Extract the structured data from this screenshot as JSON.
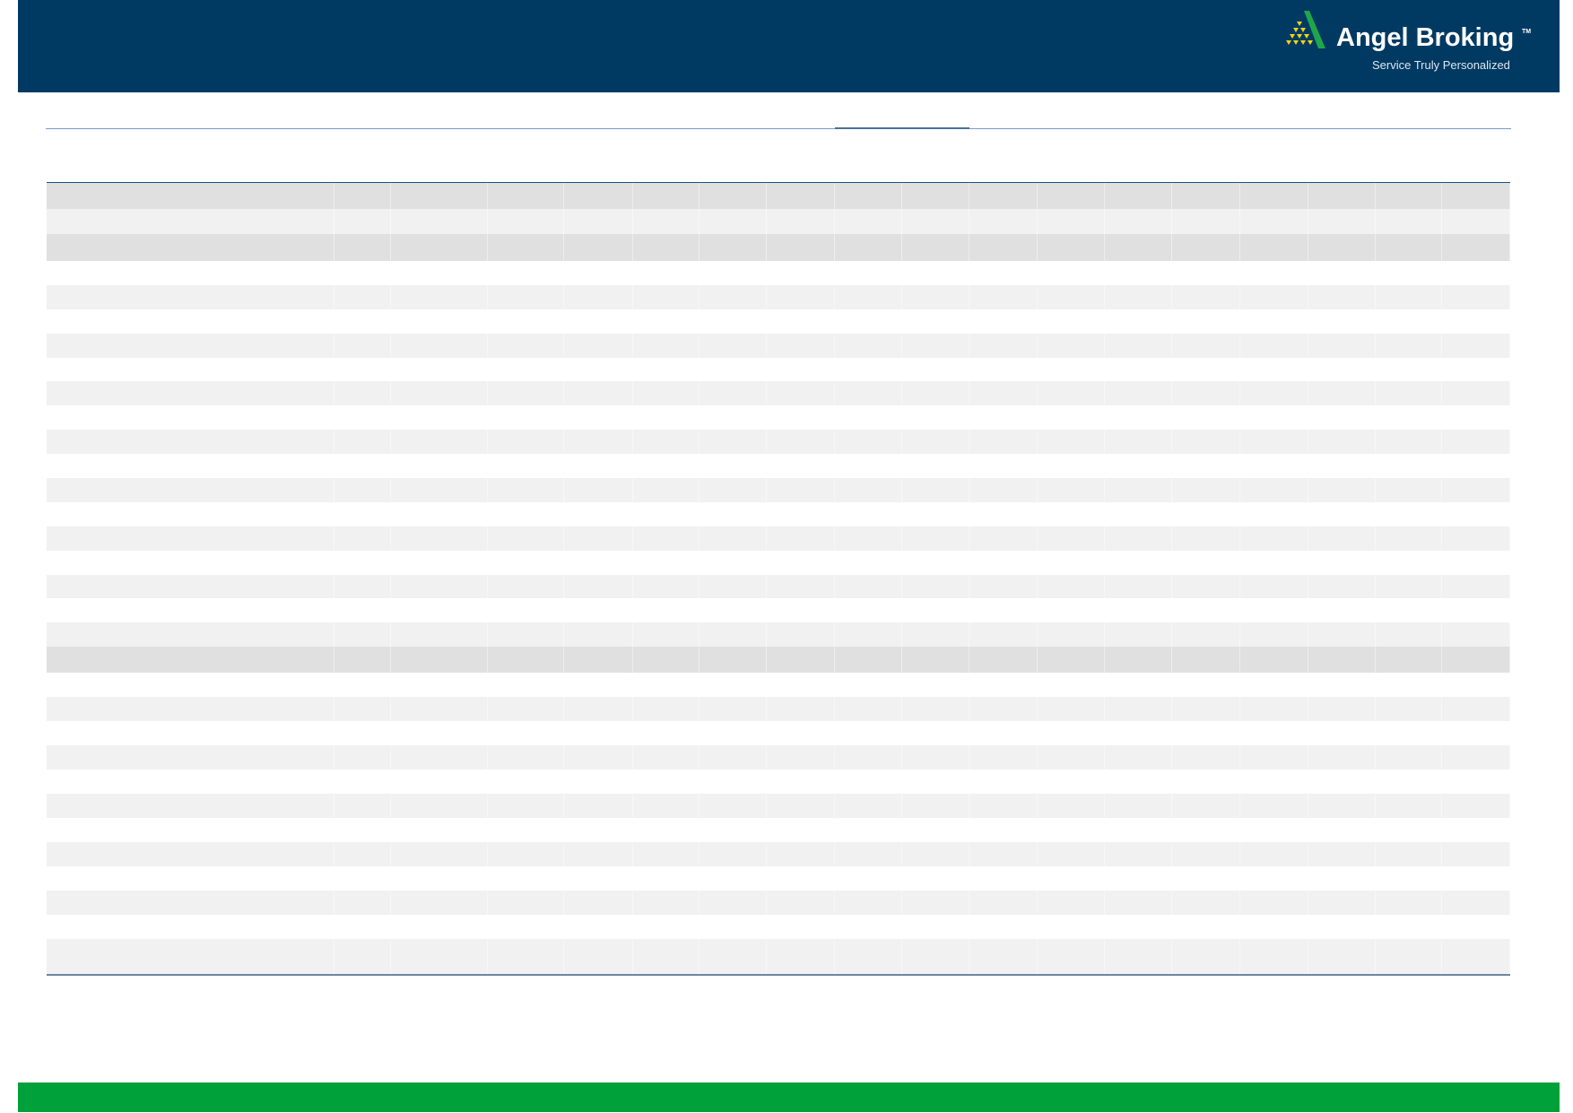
{
  "brand": {
    "name": "Angel Broking",
    "trademark": "TM",
    "tagline": "Service Truly Personalized"
  },
  "colors": {
    "header_bg": "#003a63",
    "footer_bg": "#00a13a",
    "row_dark": "#e0e0e0",
    "row_light": "#f1f1f1",
    "row_white": "#ffffff",
    "rule": "#1f4e85"
  },
  "table": {
    "columns": 18,
    "rows": 31
  }
}
